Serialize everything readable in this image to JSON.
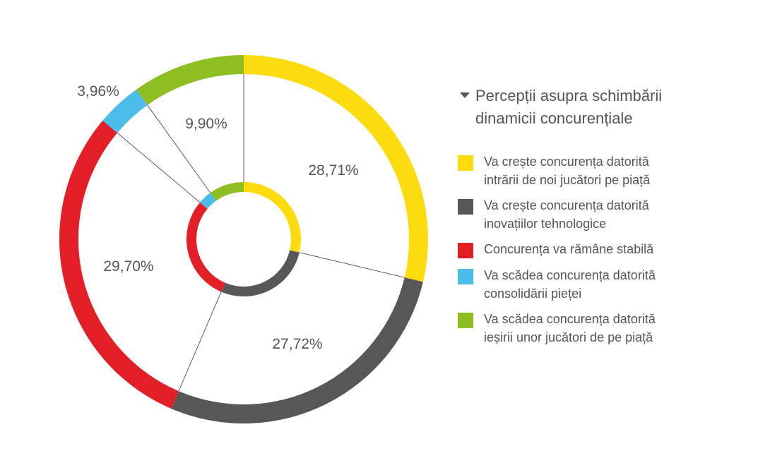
{
  "legend": {
    "title_line1": "Percepții asupra schimbării",
    "title_line2": "dinamicii concurențiale"
  },
  "chart_data": {
    "type": "pie",
    "subtype": "double-donut",
    "title": "",
    "categories": [
      "Va crește concurența datorită intrării de noi jucători pe piață",
      "Va crește concurența datorită inovațiilor tehnologice",
      "Concurența va rămâne stabilă",
      "Va scădea concurența datorită consolidării pieței",
      "Va scădea concurența datorită ieșirii unor jucători de pe piață"
    ],
    "legend_lines": [
      [
        "Va crește concurența datorită",
        "intrării de noi jucători pe piață"
      ],
      [
        "Va crește concurența datorită",
        "inovațiilor tehnologice"
      ],
      [
        "Concurența va rămâne stabilă"
      ],
      [
        "Va scădea concurența datorită",
        "consolidării pieței"
      ],
      [
        "Va scădea concurența datorită",
        "ieșirii unor jucători de pe piață"
      ]
    ],
    "values": [
      28.71,
      27.72,
      29.7,
      3.96,
      9.9
    ],
    "labels": [
      "28,71%",
      "27,72%",
      "29,70%",
      "3,96%",
      "9,90%"
    ],
    "colors": [
      "#FDDC0F",
      "#575757",
      "#E21E26",
      "#4CBDEB",
      "#8DBE22"
    ],
    "legend_position": "right"
  }
}
